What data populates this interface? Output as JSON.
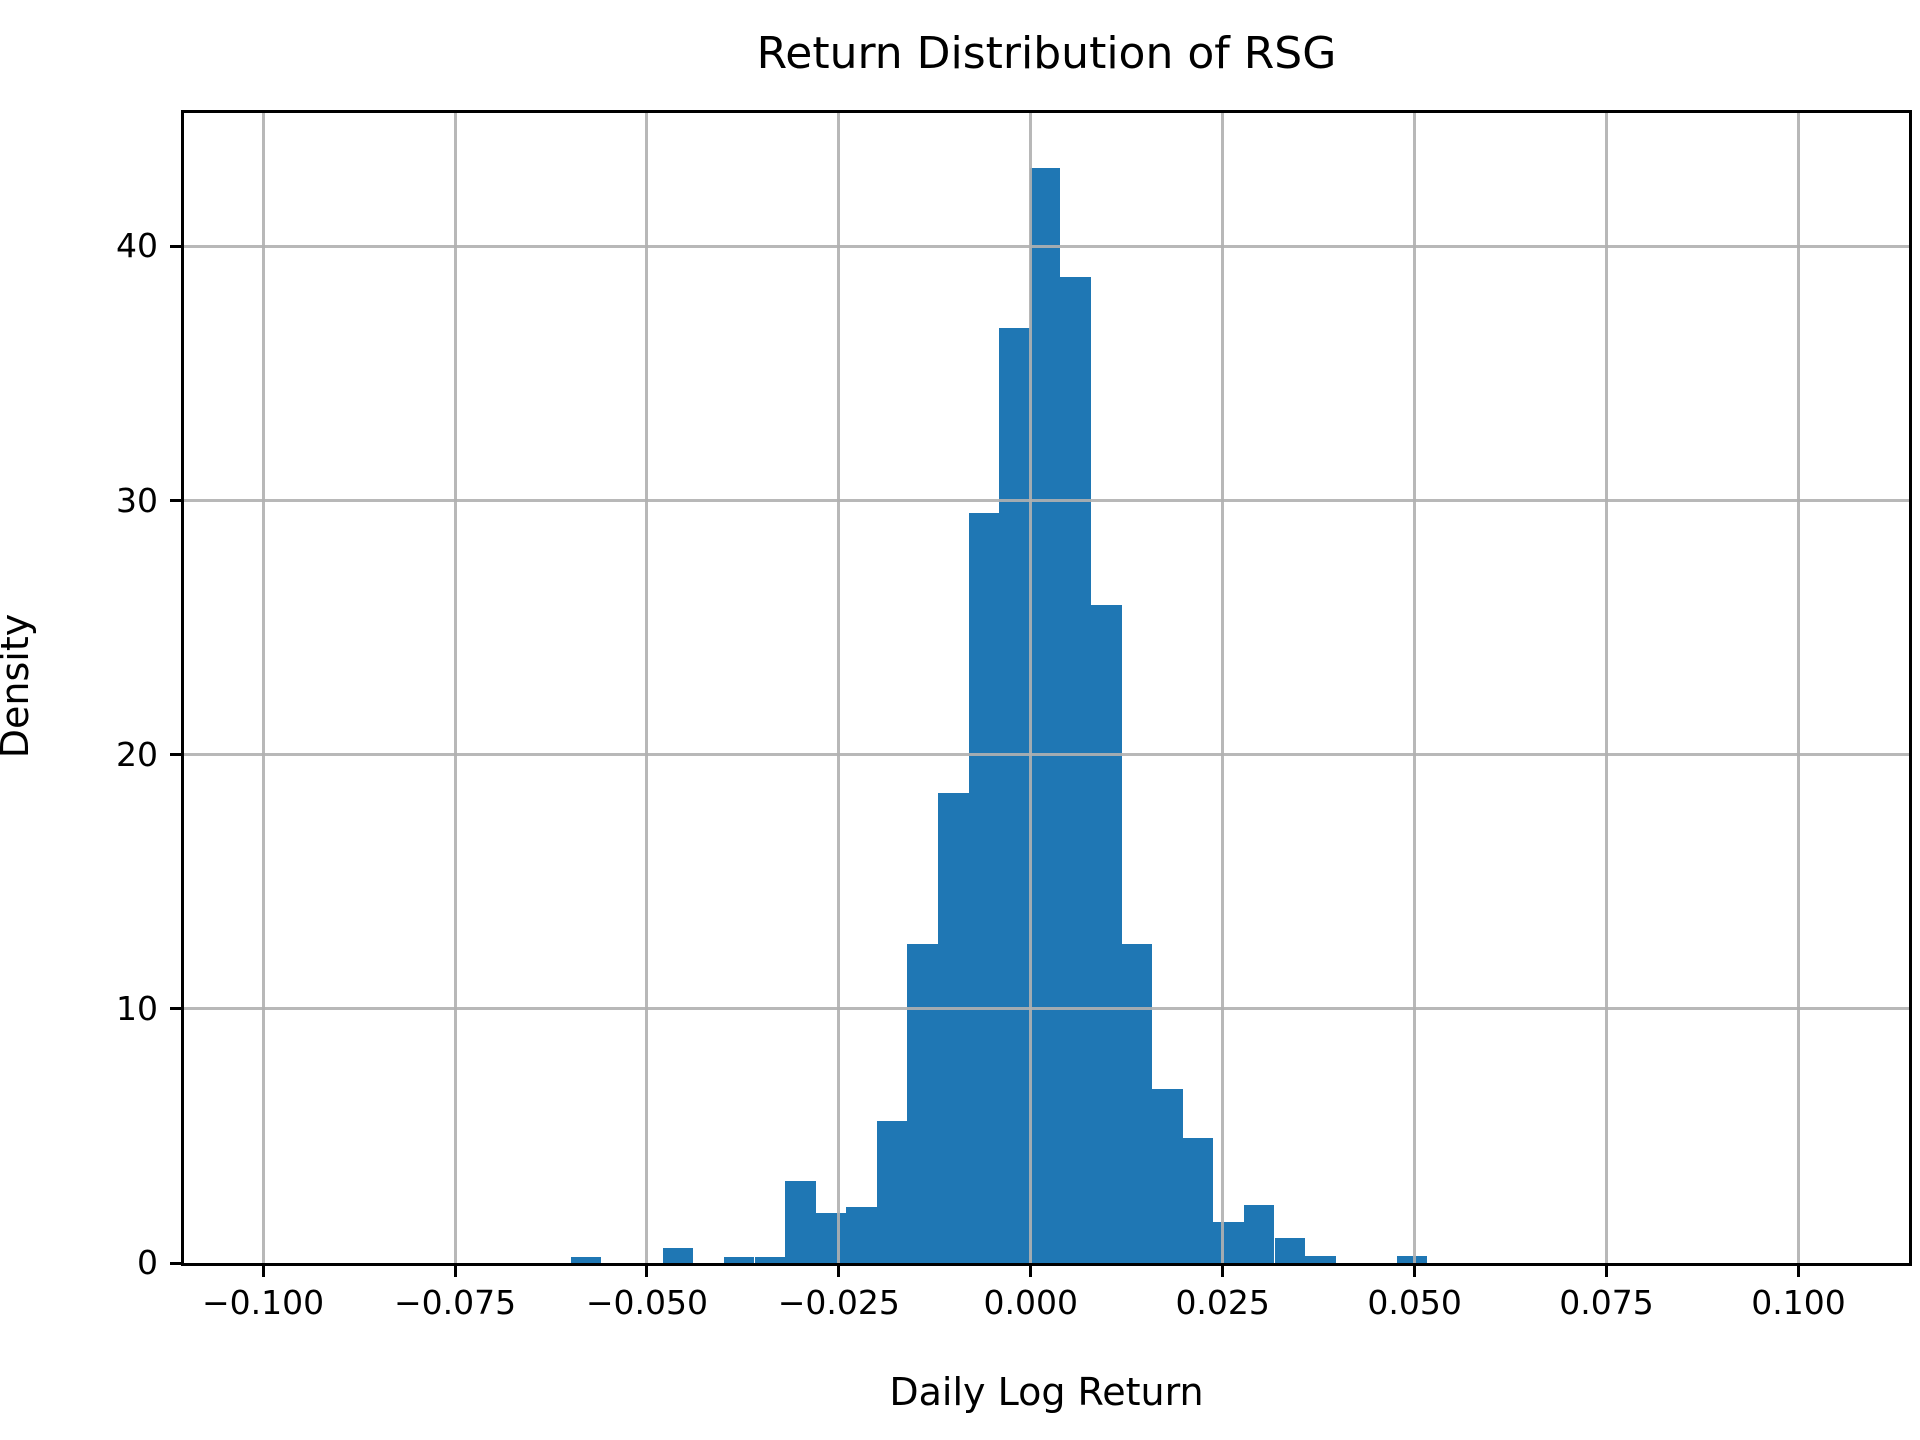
{
  "chart_data": {
    "type": "bar",
    "subtype": "histogram",
    "title": "Return Distribution of RSG",
    "xlabel": "Daily Log Return",
    "ylabel": "Density",
    "bar_color": "#1f77b4",
    "grid_color": "#b0b0b0",
    "spine_color": "#000000",
    "grid": true,
    "legend": "none",
    "xlim": [
      -0.1103,
      0.1144
    ],
    "ylim": [
      0,
      45.25
    ],
    "x_ticks": [
      -0.1,
      -0.075,
      -0.05,
      -0.025,
      0.0,
      0.025,
      0.05,
      0.075,
      0.1
    ],
    "x_tick_labels": [
      "−0.100",
      "−0.075",
      "−0.050",
      "−0.025",
      "0.000",
      "0.025",
      "0.050",
      "0.075",
      "0.100"
    ],
    "y_ticks": [
      0,
      10,
      20,
      30,
      40
    ],
    "y_tick_labels": [
      "0",
      "10",
      "20",
      "30",
      "40"
    ],
    "bins": {
      "start": -0.0599,
      "width": 0.003985,
      "count": 28
    },
    "bin_edges": [
      -0.0599,
      -0.05592,
      -0.05193,
      -0.04795,
      -0.04396,
      -0.03998,
      -0.03599,
      -0.03201,
      -0.02802,
      -0.02404,
      -0.02005,
      -0.01607,
      -0.01208,
      -0.0081,
      -0.00411,
      -0.00013,
      0.00386,
      0.00784,
      0.01183,
      0.01581,
      0.0198,
      0.02378,
      0.02777,
      0.03175,
      0.03574,
      0.03972,
      0.04371,
      0.04769,
      0.05168
    ],
    "heights": [
      0.24,
      0,
      0,
      0.6,
      0,
      0.22,
      0.22,
      3.23,
      1.98,
      2.2,
      5.58,
      12.55,
      18.5,
      29.5,
      36.8,
      43.1,
      38.8,
      25.9,
      12.55,
      6.83,
      4.93,
      1.6,
      2.27,
      0.97,
      0.26,
      0,
      0,
      0.28
    ]
  }
}
